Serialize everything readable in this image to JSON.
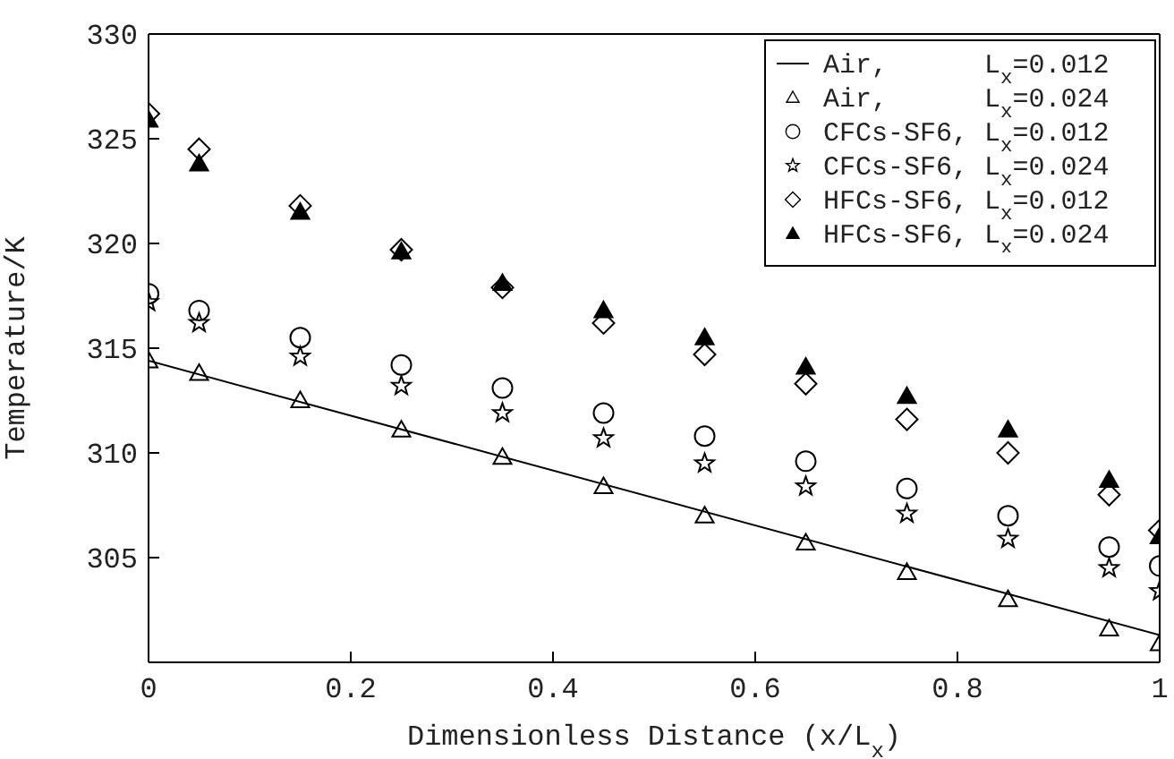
{
  "chart_data": {
    "type": "scatter",
    "xlabel": "Dimensionless Distance (x/L$_{x}$)",
    "ylabel": "Temperature/K",
    "xlim": [
      0,
      1
    ],
    "xticks": [
      0,
      0.2,
      0.4,
      0.6,
      0.8,
      1
    ],
    "ylim": [
      300,
      330
    ],
    "yticks": [
      305,
      310,
      315,
      320,
      325,
      330
    ],
    "legend": "top right",
    "x": [
      0,
      0.05,
      0.15,
      0.25,
      0.35,
      0.45,
      0.55,
      0.65,
      0.75,
      0.85,
      0.95,
      1
    ],
    "series": [
      {
        "name": "Air,      L$_{x}$=0.012",
        "type": "line",
        "color": "#000000",
        "marker": "none",
        "line_style": "solid",
        "x": [
          0,
          1
        ],
        "values": [
          314.4,
          301.3
        ]
      },
      {
        "name": "Air,      L$_{x}$=0.024",
        "color": "#000000",
        "marker": "triangle",
        "values": [
          314.4,
          313.8,
          312.5,
          311.1,
          309.8,
          308.4,
          307.0,
          305.7,
          304.3,
          303.0,
          301.6,
          300.9
        ]
      },
      {
        "name": "CFCs-SF6, L$_{x}$=0.012",
        "color": "#000000",
        "marker": "circle",
        "values": [
          317.6,
          316.8,
          315.5,
          314.2,
          313.1,
          311.9,
          310.8,
          309.6,
          308.3,
          307.0,
          305.5,
          304.6
        ]
      },
      {
        "name": "CFCs-SF6, L$_{x}$=0.024",
        "color": "#000000",
        "marker": "star",
        "values": [
          317.2,
          316.2,
          314.6,
          313.2,
          311.9,
          310.7,
          309.5,
          308.4,
          307.1,
          305.9,
          304.5,
          303.4
        ]
      },
      {
        "name": "HFCs-SF6, L$_{x}$=0.012",
        "color": "#000000",
        "marker": "diamond",
        "values": [
          326.2,
          324.5,
          321.8,
          319.7,
          317.9,
          316.2,
          314.7,
          313.3,
          311.6,
          310.0,
          308.0,
          306.3
        ]
      },
      {
        "name": "HFCs-SF6, L$_{x}$=0.024",
        "color": "#000000",
        "marker": "triangle-filled",
        "values": [
          325.9,
          323.8,
          321.5,
          319.6,
          318.1,
          316.8,
          315.5,
          314.1,
          312.7,
          311.1,
          308.7,
          306.0
        ]
      }
    ]
  }
}
